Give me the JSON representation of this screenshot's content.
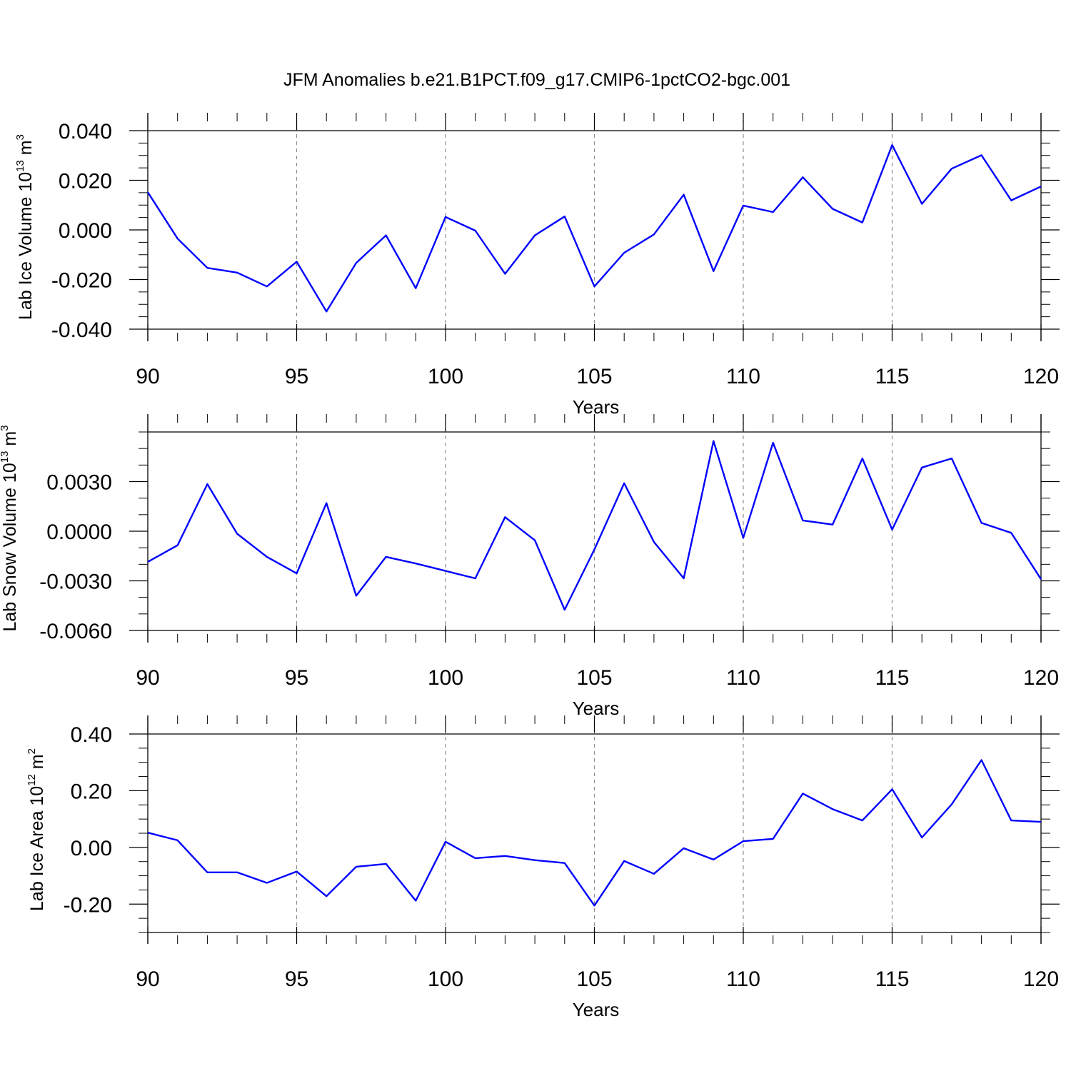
{
  "title": "JFM Anomalies b.e21.B1PCT.f09_g17.CMIP6-1pctCO2-bgc.001",
  "colors": {
    "line": "#0000ff",
    "axis": "#000000",
    "grid": "#8c8c8c"
  },
  "chart_data": [
    {
      "type": "line",
      "xlabel": "Years",
      "ylabel_main": "Lab Ice Volume 10",
      "ylabel_exp": "13",
      "ylabel_unit": " m",
      "ylabel_unit_exp": "3",
      "xlim": [
        90,
        120
      ],
      "ylim": [
        -0.04,
        0.04
      ],
      "xticks": [
        90,
        95,
        100,
        105,
        110,
        115,
        120
      ],
      "xtick_labels": [
        "90",
        "95",
        "100",
        "105",
        "110",
        "115",
        "120"
      ],
      "yticks": [
        -0.04,
        -0.02,
        0.0,
        0.02,
        0.04
      ],
      "ytick_labels": [
        "-0.040",
        "-0.020",
        "0.000",
        "0.020",
        "0.040"
      ],
      "y_minor_step": 0.005,
      "x_minor_step": 1,
      "grid_x": true,
      "x": [
        90,
        91,
        92,
        93,
        94,
        95,
        96,
        97,
        98,
        99,
        100,
        101,
        102,
        103,
        104,
        105,
        106,
        107,
        108,
        109,
        110,
        111,
        112,
        113,
        114,
        115,
        116,
        117,
        118,
        119,
        120
      ],
      "series": [
        {
          "values": [
            0.0152,
            -0.0035,
            -0.0153,
            -0.0172,
            -0.0228,
            -0.0128,
            -0.0329,
            -0.0133,
            -0.0022,
            -0.0235,
            0.0052,
            -0.0003,
            -0.0177,
            -0.0022,
            0.0054,
            -0.0228,
            -0.0092,
            -0.0018,
            0.0142,
            -0.0166,
            0.0098,
            0.0072,
            0.0212,
            0.0085,
            0.003,
            0.0342,
            0.0105,
            0.0247,
            0.0301,
            0.0119,
            0.0175
          ]
        }
      ]
    },
    {
      "type": "line",
      "xlabel": "Years",
      "ylabel_main": "Lab Snow Volume 10",
      "ylabel_exp": "13",
      "ylabel_unit": " m",
      "ylabel_unit_exp": "3",
      "xlim": [
        90,
        120
      ],
      "ylim": [
        -0.006,
        0.006
      ],
      "xticks": [
        90,
        95,
        100,
        105,
        110,
        115,
        120
      ],
      "xtick_labels": [
        "90",
        "95",
        "100",
        "105",
        "110",
        "115",
        "120"
      ],
      "yticks": [
        -0.006,
        -0.003,
        0.0,
        0.003
      ],
      "ytick_labels": [
        "-0.0060",
        "-0.0030",
        "0.0000",
        "0.0030"
      ],
      "y_minor_step": 0.001,
      "x_minor_step": 1,
      "grid_x": true,
      "x": [
        90,
        91,
        92,
        93,
        94,
        95,
        96,
        97,
        98,
        99,
        100,
        101,
        102,
        103,
        104,
        105,
        106,
        107,
        108,
        109,
        110,
        111,
        112,
        113,
        114,
        115,
        116,
        117,
        118,
        119,
        120
      ],
      "series": [
        {
          "values": [
            -0.00185,
            -0.00085,
            0.00285,
            -0.00015,
            -0.00155,
            -0.00255,
            0.0017,
            -0.0039,
            -0.00155,
            -0.00195,
            -0.0024,
            -0.00285,
            0.00085,
            -0.00055,
            -0.00475,
            -0.0011,
            0.0029,
            -0.00065,
            -0.00285,
            0.00545,
            -0.0004,
            0.00535,
            0.00065,
            0.0004,
            0.0044,
            0.0001,
            0.00385,
            0.0044,
            0.0005,
            -0.0001,
            -0.0029
          ]
        }
      ]
    },
    {
      "type": "line",
      "xlabel": "Years",
      "ylabel_main": "Lab Ice Area 10",
      "ylabel_exp": "12",
      "ylabel_unit": " m",
      "ylabel_unit_exp": "2",
      "xlim": [
        90,
        120
      ],
      "ylim": [
        -0.3,
        0.4
      ],
      "xticks": [
        90,
        95,
        100,
        105,
        110,
        115,
        120
      ],
      "xtick_labels": [
        "90",
        "95",
        "100",
        "105",
        "110",
        "115",
        "120"
      ],
      "yticks": [
        -0.2,
        0.0,
        0.2,
        0.4
      ],
      "ytick_labels": [
        "-0.20",
        "0.00",
        "0.20",
        "0.40"
      ],
      "y_minor_step": 0.05,
      "x_minor_step": 1,
      "grid_x": true,
      "x": [
        90,
        91,
        92,
        93,
        94,
        95,
        96,
        97,
        98,
        99,
        100,
        101,
        102,
        103,
        104,
        105,
        106,
        107,
        108,
        109,
        110,
        111,
        112,
        113,
        114,
        115,
        116,
        117,
        118,
        119,
        120
      ],
      "series": [
        {
          "values": [
            0.052,
            0.025,
            -0.088,
            -0.088,
            -0.125,
            -0.085,
            -0.172,
            -0.068,
            -0.058,
            -0.188,
            0.02,
            -0.038,
            -0.03,
            -0.045,
            -0.055,
            -0.205,
            -0.048,
            -0.093,
            -0.003,
            -0.043,
            0.022,
            0.03,
            0.19,
            0.135,
            0.095,
            0.205,
            0.035,
            0.152,
            0.308,
            0.095,
            0.09
          ]
        }
      ]
    }
  ]
}
